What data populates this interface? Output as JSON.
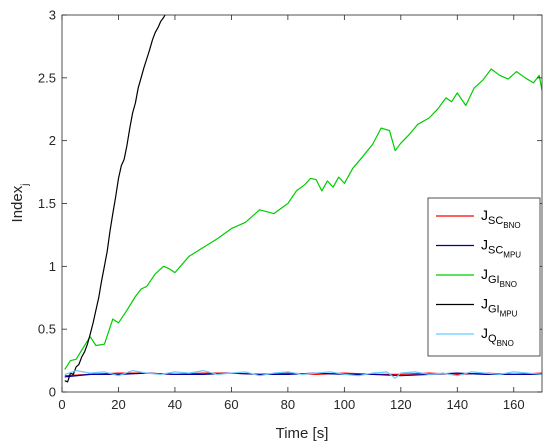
{
  "chart_data": {
    "type": "line",
    "title": "",
    "xlabel": "Time [s]",
    "ylabel": {
      "main": "Index",
      "sub": "j"
    },
    "xlim": [
      0,
      170
    ],
    "ylim": [
      0,
      3
    ],
    "xticks": [
      0,
      20,
      40,
      60,
      80,
      100,
      120,
      140,
      160
    ],
    "yticks": [
      0,
      0.5,
      1,
      1.5,
      2,
      2.5,
      3
    ],
    "yticklabels": [
      "0",
      "0.5",
      "1",
      "1.5",
      "2",
      "2.5",
      "3"
    ],
    "grid": false,
    "legend_position": "right",
    "series": [
      {
        "name": "J_SC_BNO",
        "label": {
          "main": "J",
          "sub": "SC",
          "subsub": "BNO"
        },
        "color": "#ff0000",
        "x": [
          1,
          10,
          20,
          30,
          40,
          50,
          60,
          70,
          80,
          90,
          100,
          110,
          120,
          130,
          140,
          150,
          160,
          170
        ],
        "y": [
          0.13,
          0.14,
          0.15,
          0.15,
          0.14,
          0.15,
          0.15,
          0.14,
          0.15,
          0.14,
          0.15,
          0.14,
          0.14,
          0.15,
          0.14,
          0.15,
          0.14,
          0.15
        ]
      },
      {
        "name": "J_SC_MPU",
        "label": {
          "main": "J",
          "sub": "SC",
          "subsub": "MPU"
        },
        "color": "#0000a0",
        "x": [
          1,
          10,
          20,
          30,
          40,
          50,
          60,
          70,
          80,
          90,
          100,
          110,
          120,
          130,
          140,
          150,
          160,
          170
        ],
        "y": [
          0.12,
          0.14,
          0.14,
          0.15,
          0.14,
          0.14,
          0.15,
          0.14,
          0.14,
          0.15,
          0.14,
          0.14,
          0.13,
          0.14,
          0.15,
          0.14,
          0.14,
          0.14
        ]
      },
      {
        "name": "J_GI_BNO",
        "label": {
          "main": "J",
          "sub": "GI",
          "subsub": "BNO"
        },
        "color": "#00cc00",
        "x": [
          1,
          3,
          5,
          8,
          10,
          12,
          15,
          18,
          20,
          23,
          26,
          28,
          30,
          33,
          36,
          38,
          40,
          45,
          50,
          55,
          60,
          65,
          70,
          75,
          80,
          83,
          86,
          88,
          90,
          92,
          94,
          96,
          98,
          100,
          103,
          106,
          110,
          113,
          116,
          118,
          120,
          123,
          126,
          130,
          133,
          136,
          138,
          140,
          143,
          146,
          149,
          152,
          155,
          158,
          161,
          164,
          167,
          169,
          170
        ],
        "y": [
          0.18,
          0.25,
          0.26,
          0.37,
          0.44,
          0.37,
          0.38,
          0.58,
          0.55,
          0.65,
          0.76,
          0.82,
          0.84,
          0.94,
          1.0,
          0.98,
          0.95,
          1.08,
          1.15,
          1.22,
          1.3,
          1.35,
          1.45,
          1.42,
          1.5,
          1.6,
          1.65,
          1.7,
          1.69,
          1.6,
          1.68,
          1.63,
          1.71,
          1.66,
          1.78,
          1.86,
          1.97,
          2.1,
          2.08,
          1.92,
          1.98,
          2.05,
          2.13,
          2.18,
          2.25,
          2.34,
          2.31,
          2.38,
          2.28,
          2.42,
          2.48,
          2.57,
          2.52,
          2.49,
          2.55,
          2.5,
          2.46,
          2.52,
          2.4
        ]
      },
      {
        "name": "J_GI_MPU",
        "label": {
          "main": "J",
          "sub": "GI",
          "subsub": "MPU"
        },
        "color": "#000000",
        "x": [
          1,
          2,
          3,
          4,
          5,
          6,
          7,
          8,
          9,
          10,
          11,
          12,
          13,
          14,
          15,
          16,
          17,
          18,
          19,
          20,
          21,
          22,
          23,
          24,
          25,
          26,
          27,
          28,
          29,
          30,
          31,
          32,
          33,
          34,
          35,
          36,
          37
        ],
        "y": [
          0.09,
          0.08,
          0.15,
          0.14,
          0.2,
          0.22,
          0.28,
          0.32,
          0.38,
          0.46,
          0.55,
          0.65,
          0.75,
          0.88,
          1.0,
          1.12,
          1.28,
          1.42,
          1.55,
          1.7,
          1.8,
          1.85,
          1.96,
          2.1,
          2.22,
          2.3,
          2.42,
          2.5,
          2.58,
          2.65,
          2.72,
          2.8,
          2.86,
          2.9,
          2.95,
          2.98,
          3.02
        ]
      },
      {
        "name": "J_Q_BNO",
        "label": {
          "main": "J",
          "sub": "Q",
          "subsub": "BNO"
        },
        "color": "#66ccff",
        "x": [
          1,
          5,
          10,
          15,
          20,
          25,
          30,
          35,
          40,
          45,
          50,
          55,
          60,
          65,
          70,
          75,
          80,
          85,
          90,
          95,
          100,
          105,
          110,
          115,
          118,
          120,
          125,
          130,
          135,
          140,
          145,
          150,
          155,
          160,
          165,
          170
        ],
        "y": [
          0.14,
          0.17,
          0.15,
          0.16,
          0.13,
          0.17,
          0.15,
          0.14,
          0.16,
          0.15,
          0.17,
          0.14,
          0.15,
          0.16,
          0.13,
          0.15,
          0.16,
          0.14,
          0.15,
          0.16,
          0.14,
          0.13,
          0.15,
          0.16,
          0.11,
          0.15,
          0.16,
          0.14,
          0.15,
          0.13,
          0.16,
          0.15,
          0.14,
          0.16,
          0.15,
          0.14
        ]
      }
    ]
  }
}
